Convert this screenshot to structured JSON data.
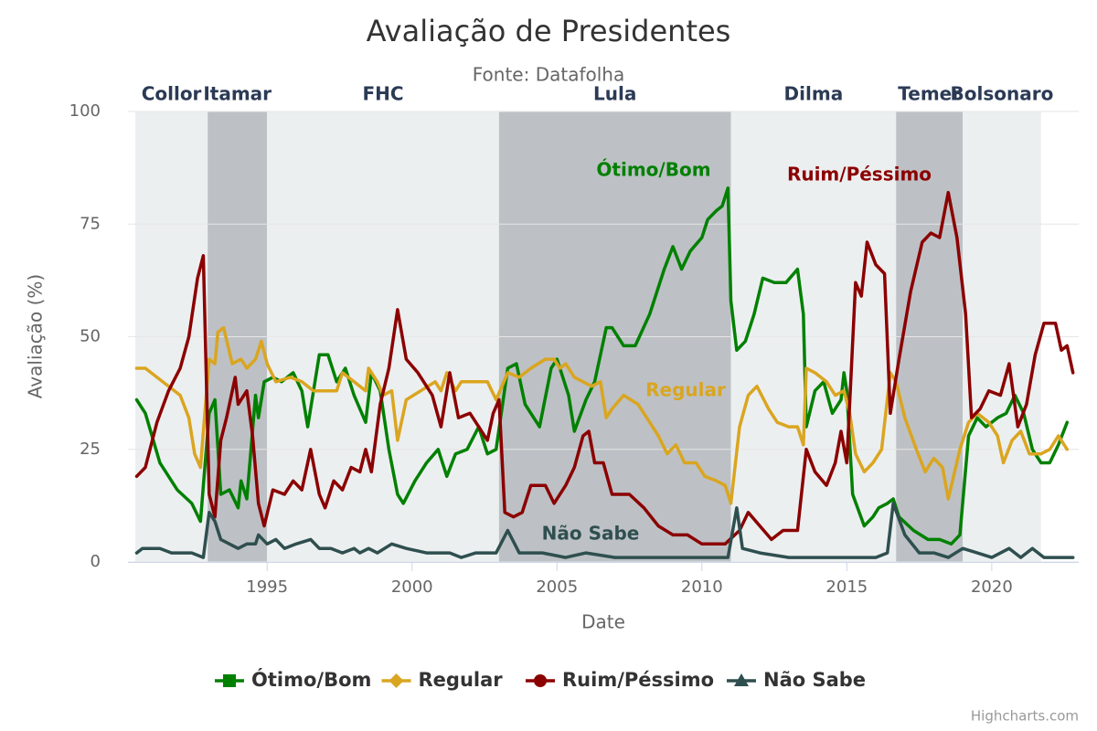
{
  "chart_data": {
    "type": "line",
    "title": "Avaliação de Presidentes",
    "subtitle": "Fonte: Datafolha",
    "x_label": "Date",
    "y_label": "Avaliação (%)",
    "credits": "Highcharts.com",
    "xlim": [
      1990.2,
      2023
    ],
    "xticks": [
      1995,
      2000,
      2005,
      2010,
      2015,
      2020
    ],
    "ylim": [
      0,
      100
    ],
    "yticks": [
      0,
      25,
      50,
      75,
      100
    ],
    "grid": true,
    "plot_bands": [
      {
        "label": "Collor",
        "from": 1990.45,
        "to": 1992.95,
        "color": "#eceff0"
      },
      {
        "label": "Itamar",
        "from": 1992.95,
        "to": 1995.0,
        "color": "#bdc1c5"
      },
      {
        "label": "FHC",
        "from": 1995.0,
        "to": 2003.0,
        "color": "#eceff0"
      },
      {
        "label": "Lula",
        "from": 2003.0,
        "to": 2011.0,
        "color": "#bdc1c5"
      },
      {
        "label": "Dilma",
        "from": 2011.0,
        "to": 2016.7,
        "color": "#eceff0"
      },
      {
        "label": "Temer",
        "from": 2016.7,
        "to": 2019.0,
        "color": "#bdc1c5"
      },
      {
        "label": "Bolsonaro",
        "from": 2019.0,
        "to": 2021.7,
        "color": "#eceff0"
      }
    ],
    "annotations": [
      "Ótimo/Bom",
      "Ruim/Péssimo",
      "Regular",
      "Não Sabe"
    ],
    "series": [
      {
        "name": "Ótimo/Bom",
        "color": "#008000",
        "marker": "square",
        "x": [
          1990.5,
          1990.8,
          1991.3,
          1991.9,
          1992.4,
          1992.7,
          1993.0,
          1993.2,
          1993.4,
          1993.7,
          1994.0,
          1994.1,
          1994.3,
          1994.6,
          1994.7,
          1994.9,
          1995.2,
          1995.5,
          1995.9,
          1996.2,
          1996.4,
          1996.8,
          1997.1,
          1997.4,
          1997.7,
          1998.0,
          1998.4,
          1998.6,
          1998.9,
          1999.2,
          1999.5,
          1999.7,
          2000.1,
          2000.5,
          2000.9,
          2001.2,
          2001.5,
          2001.9,
          2002.3,
          2002.6,
          2002.9,
          2003.3,
          2003.6,
          2003.9,
          2004.4,
          2004.8,
          2005.0,
          2005.4,
          2005.6,
          2006.0,
          2006.3,
          2006.7,
          2006.9,
          2007.3,
          2007.7,
          2008.2,
          2008.7,
          2009.0,
          2009.3,
          2009.6,
          2010.0,
          2010.2,
          2010.5,
          2010.7,
          2010.9,
          2011.0,
          2011.2,
          2011.5,
          2011.8,
          2012.1,
          2012.5,
          2012.9,
          2013.3,
          2013.5,
          2013.6,
          2013.9,
          2014.2,
          2014.5,
          2014.8,
          2014.9,
          2015.0,
          2015.2,
          2015.6,
          2015.9,
          2016.1,
          2016.4,
          2016.6,
          2016.8,
          2017.3,
          2017.8,
          2018.2,
          2018.6,
          2018.9,
          2019.2,
          2019.5,
          2019.8,
          2020.2,
          2020.5,
          2020.8,
          2021.1,
          2021.4,
          2021.7,
          2022.0,
          2022.3,
          2022.6
        ],
        "values": [
          36,
          33,
          22,
          16,
          13,
          9,
          33,
          36,
          15,
          16,
          12,
          18,
          14,
          37,
          32,
          40,
          41,
          40,
          42,
          38,
          30,
          46,
          46,
          40,
          43,
          37,
          31,
          42,
          38,
          25,
          15,
          13,
          18,
          22,
          25,
          19,
          24,
          25,
          30,
          24,
          25,
          43,
          44,
          35,
          30,
          43,
          45,
          37,
          29,
          36,
          40,
          52,
          52,
          48,
          48,
          55,
          65,
          70,
          65,
          69,
          72,
          76,
          78,
          79,
          83,
          58,
          47,
          49,
          55,
          63,
          62,
          62,
          65,
          55,
          30,
          38,
          40,
          33,
          36,
          42,
          38,
          15,
          8,
          10,
          12,
          13,
          14,
          10,
          7,
          5,
          5,
          4,
          6,
          28,
          32,
          30,
          32,
          33,
          37,
          33,
          25,
          22,
          22,
          26,
          31
        ]
      },
      {
        "name": "Regular",
        "color": "#daa520",
        "marker": "diamond",
        "x": [
          1990.5,
          1990.8,
          1991.2,
          1991.6,
          1992.0,
          1992.3,
          1992.5,
          1992.7,
          1993.0,
          1993.2,
          1993.3,
          1993.5,
          1993.8,
          1994.1,
          1994.3,
          1994.6,
          1994.8,
          1995.0,
          1995.3,
          1995.8,
          1996.2,
          1996.6,
          1997.0,
          1997.4,
          1997.6,
          1998.0,
          1998.4,
          1998.5,
          1998.8,
          1999.0,
          1999.3,
          1999.5,
          1999.8,
          2000.3,
          2000.8,
          2001.0,
          2001.2,
          2001.5,
          2001.7,
          2002.1,
          2002.6,
          2002.9,
          2003.3,
          2003.7,
          2004.1,
          2004.6,
          2004.9,
          2005.1,
          2005.3,
          2005.6,
          2005.9,
          2006.2,
          2006.5,
          2006.7,
          2006.9,
          2007.3,
          2007.8,
          2008.2,
          2008.5,
          2008.8,
          2009.1,
          2009.4,
          2009.8,
          2010.1,
          2010.5,
          2010.8,
          2011.0,
          2011.3,
          2011.6,
          2011.9,
          2012.3,
          2012.6,
          2013.0,
          2013.3,
          2013.5,
          2013.6,
          2013.9,
          2014.3,
          2014.6,
          2014.9,
          2015.1,
          2015.3,
          2015.6,
          2015.9,
          2016.2,
          2016.5,
          2016.7,
          2017.0,
          2017.4,
          2017.7,
          2018.0,
          2018.3,
          2018.5,
          2018.9,
          2019.2,
          2019.5,
          2019.9,
          2020.2,
          2020.4,
          2020.7,
          2021.0,
          2021.3,
          2021.7,
          2022.0,
          2022.3,
          2022.6
        ],
        "values": [
          43,
          43,
          41,
          39,
          37,
          32,
          24,
          21,
          45,
          44,
          51,
          52,
          44,
          45,
          43,
          45,
          49,
          44,
          40,
          41,
          40,
          38,
          38,
          38,
          42,
          40,
          38,
          43,
          40,
          37,
          38,
          27,
          36,
          38,
          40,
          38,
          42,
          38,
          40,
          40,
          40,
          36,
          42,
          41,
          43,
          45,
          45,
          43,
          44,
          41,
          40,
          39,
          40,
          32,
          34,
          37,
          35,
          31,
          28,
          24,
          26,
          22,
          22,
          19,
          18,
          17,
          13,
          30,
          37,
          39,
          34,
          31,
          30,
          30,
          26,
          43,
          42,
          40,
          37,
          38,
          33,
          24,
          20,
          22,
          25,
          42,
          40,
          32,
          25,
          20,
          23,
          21,
          14,
          25,
          31,
          33,
          31,
          28,
          22,
          27,
          29,
          24,
          24,
          25,
          28,
          25
        ]
      },
      {
        "name": "Ruim/Péssimo",
        "color": "#8b0000",
        "marker": "circle",
        "x": [
          1990.5,
          1990.8,
          1991.2,
          1991.6,
          1992.0,
          1992.3,
          1992.6,
          1992.8,
          1993.0,
          1993.2,
          1993.4,
          1993.6,
          1993.9,
          1994.0,
          1994.3,
          1994.5,
          1994.7,
          1994.9,
          1995.2,
          1995.6,
          1995.9,
          1996.2,
          1996.5,
          1996.8,
          1997.0,
          1997.3,
          1997.6,
          1997.9,
          1998.2,
          1998.4,
          1998.6,
          1998.9,
          1999.2,
          1999.5,
          1999.8,
          2000.2,
          2000.7,
          2001.0,
          2001.3,
          2001.6,
          2002.0,
          2002.3,
          2002.6,
          2002.8,
          2003.0,
          2003.2,
          2003.5,
          2003.8,
          2004.1,
          2004.6,
          2004.9,
          2005.3,
          2005.6,
          2005.9,
          2006.1,
          2006.3,
          2006.6,
          2006.9,
          2007.5,
          2008.0,
          2008.5,
          2009.0,
          2009.5,
          2010.0,
          2010.4,
          2010.8,
          2011.3,
          2011.6,
          2012.0,
          2012.4,
          2012.8,
          2013.3,
          2013.6,
          2013.9,
          2014.3,
          2014.6,
          2014.8,
          2015.0,
          2015.3,
          2015.5,
          2015.7,
          2016.0,
          2016.3,
          2016.5,
          2016.8,
          2017.2,
          2017.6,
          2017.9,
          2018.2,
          2018.5,
          2018.8,
          2019.1,
          2019.3,
          2019.6,
          2019.9,
          2020.3,
          2020.6,
          2020.9,
          2021.2,
          2021.5,
          2021.8,
          2022.2,
          2022.4,
          2022.6,
          2022.8
        ],
        "values": [
          19,
          21,
          31,
          38,
          43,
          50,
          63,
          68,
          15,
          10,
          27,
          32,
          41,
          35,
          38,
          28,
          13,
          8,
          16,
          15,
          18,
          16,
          25,
          15,
          12,
          18,
          16,
          21,
          20,
          25,
          20,
          35,
          43,
          56,
          45,
          42,
          37,
          30,
          42,
          32,
          33,
          30,
          27,
          33,
          36,
          11,
          10,
          11,
          17,
          17,
          13,
          17,
          21,
          28,
          29,
          22,
          22,
          15,
          15,
          12,
          8,
          6,
          6,
          4,
          4,
          4,
          7,
          11,
          8,
          5,
          7,
          7,
          25,
          20,
          17,
          22,
          29,
          22,
          62,
          59,
          71,
          66,
          64,
          33,
          45,
          60,
          71,
          73,
          72,
          82,
          72,
          55,
          32,
          34,
          38,
          37,
          44,
          30,
          35,
          46,
          53,
          53,
          47,
          48,
          42
        ]
      },
      {
        "name": "Não Sabe",
        "color": "#2f4f4f",
        "marker": "triangle",
        "x": [
          1990.5,
          1990.7,
          1991.3,
          1991.7,
          1992.4,
          1992.8,
          1993.0,
          1993.2,
          1993.4,
          1993.7,
          1994.0,
          1994.3,
          1994.6,
          1994.7,
          1995.0,
          1995.3,
          1995.6,
          1996.0,
          1996.5,
          1996.8,
          1997.2,
          1997.6,
          1998.0,
          1998.2,
          1998.5,
          1998.8,
          1999.3,
          1999.8,
          2000.5,
          2001.3,
          2001.7,
          2002.2,
          2002.9,
          2003.3,
          2003.7,
          2004.5,
          2005.3,
          2006.0,
          2007.0,
          2008.0,
          2009.0,
          2010.0,
          2010.6,
          2010.9,
          2011.2,
          2011.4,
          2012.0,
          2013.0,
          2014.0,
          2014.6,
          2015.5,
          2016.0,
          2016.4,
          2016.6,
          2017.0,
          2017.5,
          2018.0,
          2018.5,
          2019.0,
          2019.5,
          2020.0,
          2020.6,
          2021.0,
          2021.4,
          2021.8,
          2022.8
        ],
        "values": [
          2,
          3,
          3,
          2,
          2,
          1,
          11,
          9,
          5,
          4,
          3,
          4,
          4,
          6,
          4,
          5,
          3,
          4,
          5,
          3,
          3,
          2,
          3,
          2,
          3,
          2,
          4,
          3,
          2,
          2,
          1,
          2,
          2,
          7,
          2,
          2,
          1,
          2,
          1,
          1,
          1,
          1,
          1,
          1,
          12,
          3,
          2,
          1,
          1,
          1,
          1,
          1,
          2,
          13,
          6,
          2,
          2,
          1,
          3,
          2,
          1,
          3,
          1,
          3,
          1,
          1
        ]
      }
    ]
  }
}
